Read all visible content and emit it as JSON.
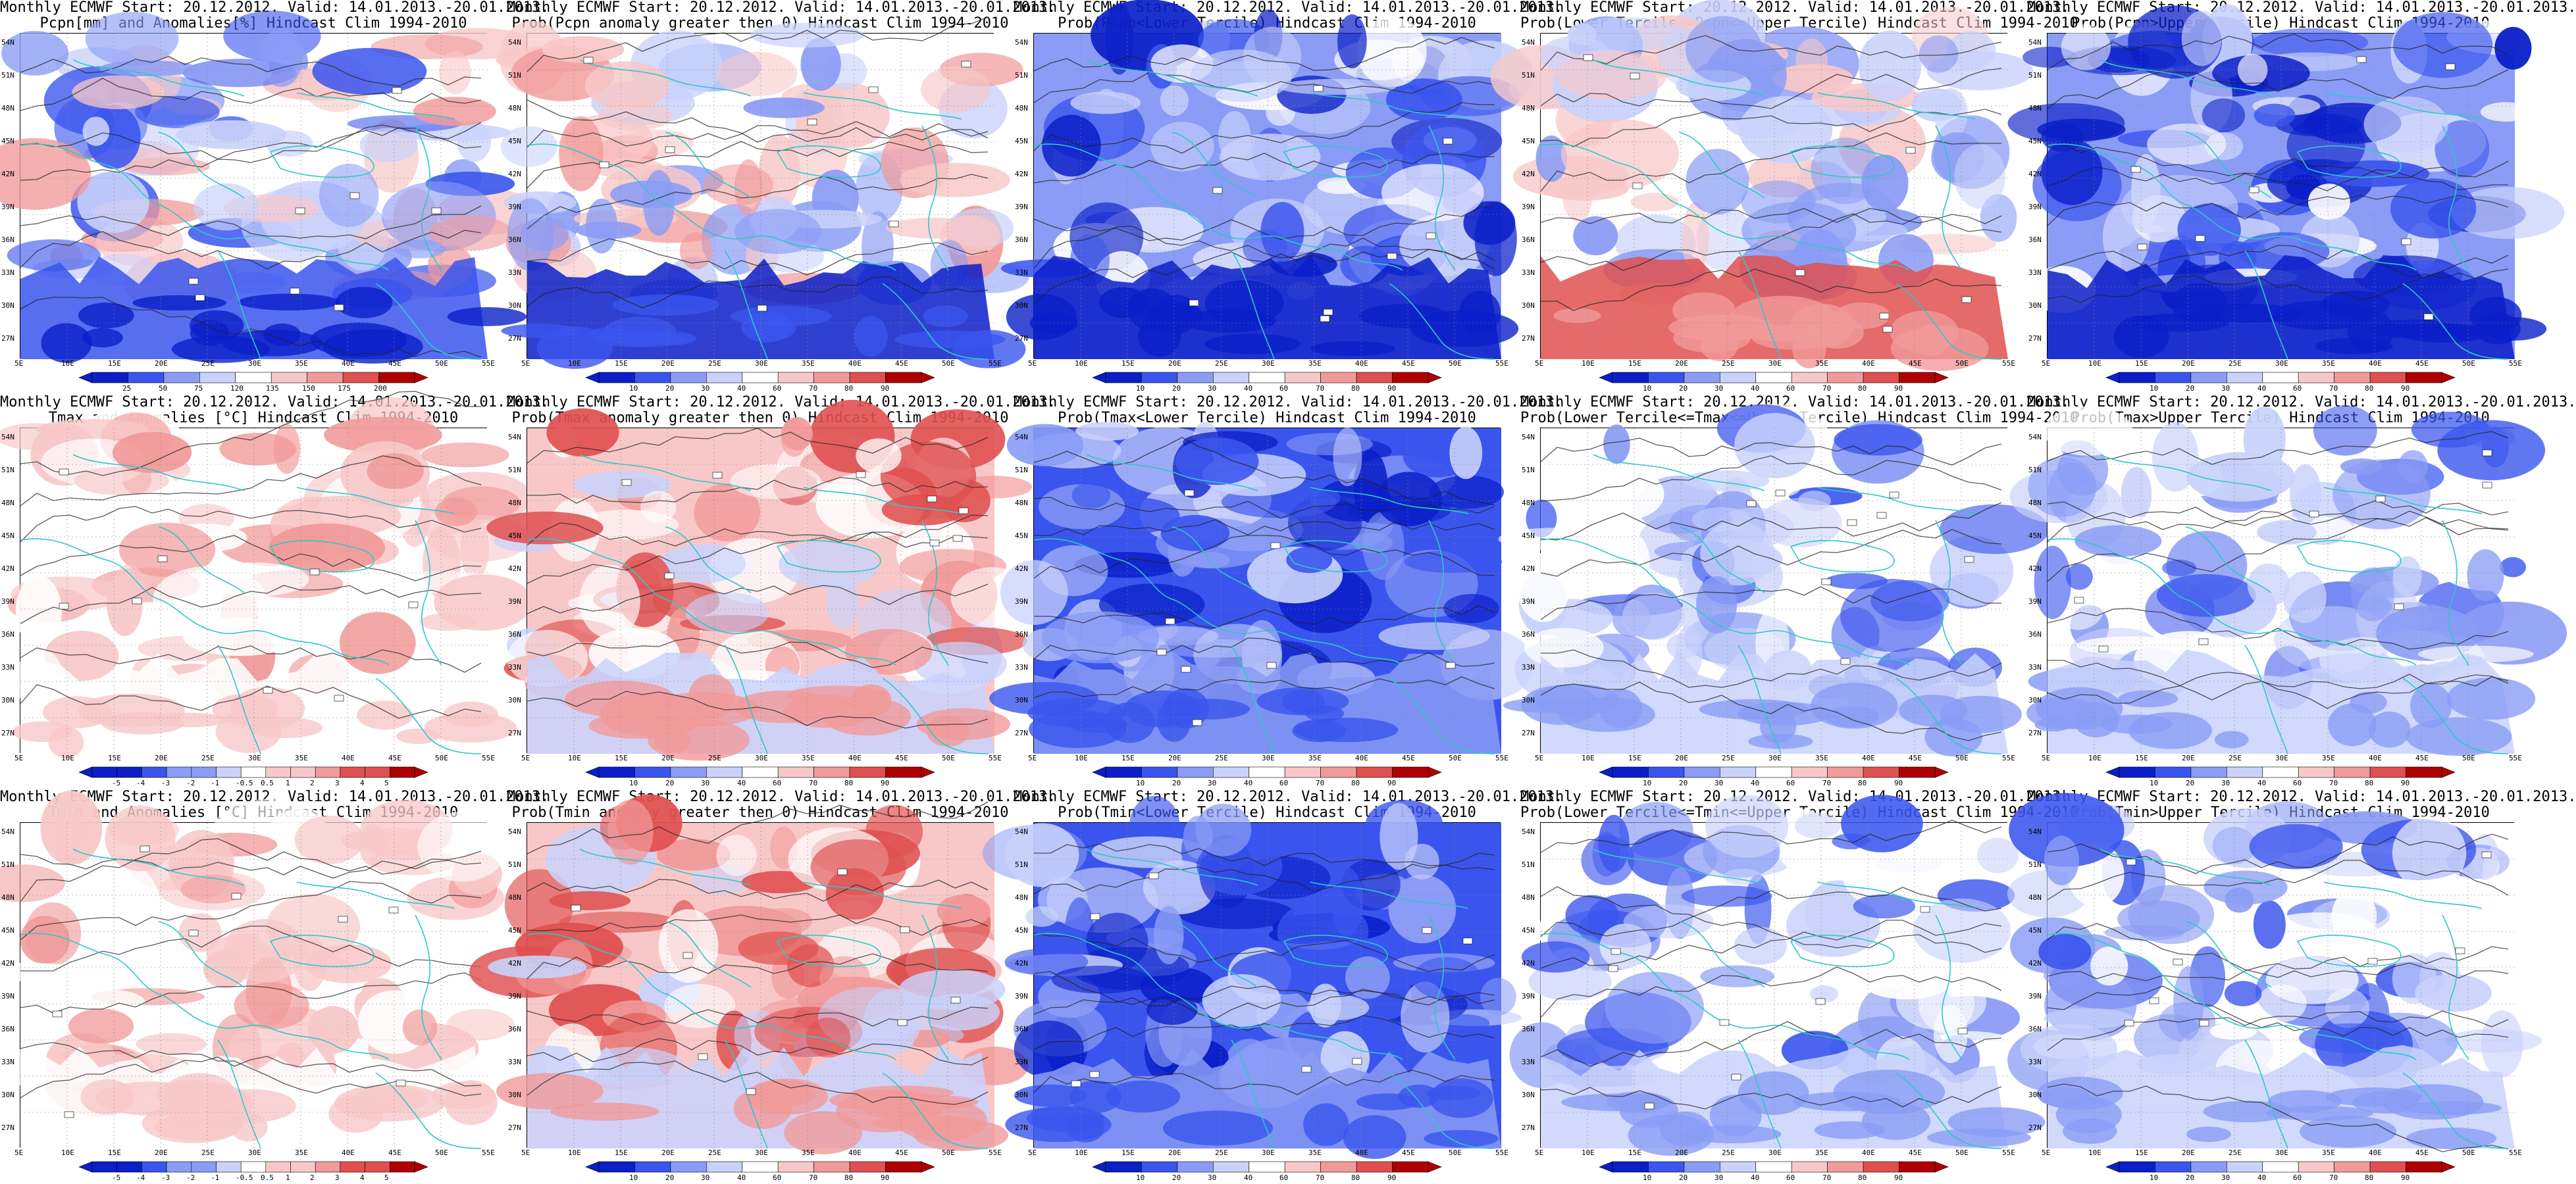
{
  "panels": [
    {
      "title_line1": "Monthly ECMWF Start: 20.12.2012. Valid: 14.01.2013.-20.01.2013.",
      "title_line2": "Pcpn[mm] and Anomalies[%] Hindcast Clim 1994-2010",
      "colorbar": [
        "25",
        "50",
        "75",
        "120",
        "135",
        "150",
        "175",
        "200"
      ],
      "scheme": "precip_anom"
    },
    {
      "title_line1": "Monthly ECMWF Start: 20.12.2012. Valid: 14.01.2013.-20.01.2013.",
      "title_line2": "Prob(Pcpn anomaly greater then 0) Hindcast Clim 1994-2010",
      "colorbar": [
        "10",
        "20",
        "30",
        "40",
        "60",
        "70",
        "80",
        "90"
      ],
      "scheme": "prob_mixed"
    },
    {
      "title_line1": "Monthly ECMWF Start: 20.12.2012. Valid: 14.01.2013.-20.01.2013.",
      "title_line2": "Prob(Pcpn<Lower Tercile) Hindcast Clim 1994-2010",
      "colorbar": [
        "10",
        "20",
        "30",
        "40",
        "60",
        "70",
        "80",
        "90"
      ],
      "scheme": "prob_blue"
    },
    {
      "title_line1": "Monthly ECMWF Start: 20.12.2012. Valid: 14.01.2013.-20.01.2013.",
      "title_line2": "Prob(Lower Tercile<=Pcpn<=Upper Tercile) Hindcast Clim 1994-2010",
      "colorbar": [
        "10",
        "20",
        "30",
        "40",
        "60",
        "70",
        "80",
        "90"
      ],
      "scheme": "prob_redsouth"
    },
    {
      "title_line1": "Monthly ECMWF Start: 20.12.2012. Valid: 14.01.2013.-20.01.2013.",
      "title_line2": "Prob(Pcpn>Upper Tercile) Hindcast Clim 1994-2010",
      "colorbar": [
        "10",
        "20",
        "30",
        "40",
        "60",
        "70",
        "80",
        "90"
      ],
      "scheme": "prob_blue"
    },
    {
      "title_line1": "Monthly ECMWF Start: 20.12.2012. Valid: 14.01.2013.-20.01.2013.",
      "title_line2": "Tmax and Anomalies [°C] Hindcast Clim 1994-2010",
      "colorbar": [
        "-5",
        "-4",
        "-3",
        "-2",
        "-1",
        "-0.5",
        "0.5",
        "1",
        "2",
        "3",
        "4",
        "5"
      ],
      "scheme": "temp_red"
    },
    {
      "title_line1": "Monthly ECMWF Start: 20.12.2012. Valid: 14.01.2013.-20.01.2013.",
      "title_line2": "Prob(Tmax anomaly greater then 0) Hindcast Clim 1994-2010",
      "colorbar": [
        "10",
        "20",
        "30",
        "40",
        "60",
        "70",
        "80",
        "90"
      ],
      "scheme": "temp_red_strong"
    },
    {
      "title_line1": "Monthly ECMWF Start: 20.12.2012. Valid: 14.01.2013.-20.01.2013.",
      "title_line2": "Prob(Tmax<Lower Tercile) Hindcast Clim 1994-2010",
      "colorbar": [
        "10",
        "20",
        "30",
        "40",
        "60",
        "70",
        "80",
        "90"
      ],
      "scheme": "prob_blue_strong"
    },
    {
      "title_line1": "Monthly ECMWF Start: 20.12.2012. Valid: 14.01.2013.-20.01.2013.",
      "title_line2": "Prob(Lower Tercile<=Tmax<=Upper Tercile) Hindcast Clim 1994-2010",
      "colorbar": [
        "10",
        "20",
        "30",
        "40",
        "60",
        "70",
        "80",
        "90"
      ],
      "scheme": "prob_light"
    },
    {
      "title_line1": "Monthly ECMWF Start: 20.12.2012. Valid: 14.01.2013.-20.01.2013.",
      "title_line2": "Prob(Tmax>Upper Tercile) Hindcast Clim 1994-2010",
      "colorbar": [
        "10",
        "20",
        "30",
        "40",
        "60",
        "70",
        "80",
        "90"
      ],
      "scheme": "prob_light"
    },
    {
      "title_line1": "Monthly ECMWF Start: 20.12.2012. Valid: 14.01.2013.-20.01.2013.",
      "title_line2": "Tmin and Anomalies [°C] Hindcast Clim 1994-2010",
      "colorbar": [
        "-5",
        "-4",
        "-3",
        "-2",
        "-1",
        "-0.5",
        "0.5",
        "1",
        "2",
        "3",
        "4",
        "5"
      ],
      "scheme": "temp_red"
    },
    {
      "title_line1": "Monthly ECMWF Start: 20.12.2012. Valid: 14.01.2013.-20.01.2013.",
      "title_line2": "Prob(Tmin anomaly greater then 0) Hindcast Clim 1994-2010",
      "colorbar": [
        "10",
        "20",
        "30",
        "40",
        "60",
        "70",
        "80",
        "90"
      ],
      "scheme": "temp_red_strong"
    },
    {
      "title_line1": "Monthly ECMWF Start: 20.12.2012. Valid: 14.01.2013.-20.01.2013.",
      "title_line2": "Prob(Tmin<Lower Tercile) Hindcast Clim 1994-2010",
      "colorbar": [
        "10",
        "20",
        "30",
        "40",
        "60",
        "70",
        "80",
        "90"
      ],
      "scheme": "prob_blue_strong"
    },
    {
      "title_line1": "Monthly ECMWF Start: 20.12.2012. Valid: 14.01.2013.-20.01.2013.",
      "title_line2": "Prob(Lower Tercile<=Tmin<=Upper Tercile) Hindcast Clim 1994-2010",
      "colorbar": [
        "10",
        "20",
        "30",
        "40",
        "60",
        "70",
        "80",
        "90"
      ],
      "scheme": "prob_light"
    },
    {
      "title_line1": "Monthly ECMWF Start: 20.12.2012. Valid: 14.01.2013.-20.01.2013.",
      "title_line2": "Prob(Tmin>Upper Tercile) Hindcast Clim 1994-2010",
      "colorbar": [
        "10",
        "20",
        "30",
        "40",
        "60",
        "70",
        "80",
        "90"
      ],
      "scheme": "prob_light"
    }
  ],
  "lat_labels": [
    "54N",
    "51N",
    "48N",
    "45N",
    "42N",
    "39N",
    "36N",
    "33N",
    "30N",
    "27N"
  ],
  "lon_labels": [
    "5E",
    "10E",
    "15E",
    "20E",
    "25E",
    "30E",
    "35E",
    "40E",
    "45E",
    "50E",
    "55E"
  ],
  "colors": {
    "coast": "#2ec8c8",
    "contour": "#222222",
    "blue_dark": "#0a1fc8",
    "blue_mid": "#3a55ee",
    "blue_light": "#8a9cf5",
    "blue_pale": "#c9d2fb",
    "red_pale": "#f8c8c8",
    "red_light": "#f19a9a",
    "red_mid": "#e05050",
    "red_dark": "#b00000"
  }
}
